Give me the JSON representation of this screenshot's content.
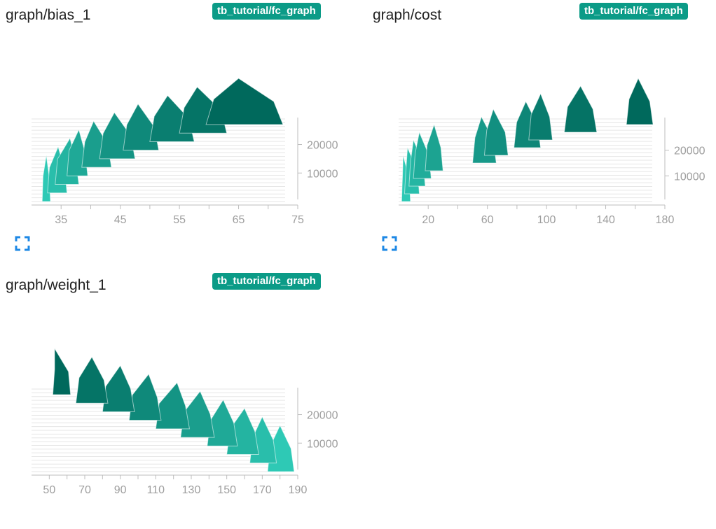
{
  "cards": [
    {
      "title": "graph/bias_1",
      "run_label": "tb_tutorial/fc_graph"
    },
    {
      "title": "graph/cost",
      "run_label": "tb_tutorial/fc_graph"
    },
    {
      "title": "graph/weight_1",
      "run_label": "tb_tutorial/fc_graph"
    }
  ],
  "colors": {
    "badge": "#0b9b87",
    "newest": "#00695c",
    "oldest": "#2ec9b5",
    "axis": "#bdbdbd",
    "tick_text": "#9e9e9e",
    "expand_icon": "#1e88e5"
  },
  "icons": {
    "expand": "fullscreen-corners-icon"
  },
  "chart_data": [
    {
      "type": "histogram",
      "title": "graph/bias_1",
      "x_ticks": [
        "35",
        "45",
        "55",
        "65",
        "75"
      ],
      "y_ticks": [
        "10000",
        "20000"
      ],
      "x_range": [
        30,
        75
      ],
      "step_range": [
        0,
        27000
      ],
      "series": [
        {
          "step": 0,
          "left": 31.8,
          "right": 33.2,
          "mode": 32.5
        },
        {
          "step": 3000,
          "left": 32.7,
          "right": 36.0,
          "mode": 34.5
        },
        {
          "step": 6000,
          "left": 34.0,
          "right": 38.0,
          "mode": 36.5
        },
        {
          "step": 9000,
          "left": 36.0,
          "right": 39.5,
          "mode": 38.0
        },
        {
          "step": 12000,
          "left": 38.5,
          "right": 43.5,
          "mode": 40.5
        },
        {
          "step": 15000,
          "left": 41.5,
          "right": 47.5,
          "mode": 44.0
        },
        {
          "step": 18000,
          "left": 45.5,
          "right": 51.5,
          "mode": 48.0
        },
        {
          "step": 21000,
          "left": 50.0,
          "right": 57.5,
          "mode": 53.0
        },
        {
          "step": 24000,
          "left": 55.0,
          "right": 63.0,
          "mode": 58.0
        },
        {
          "step": 27000,
          "left": 59.5,
          "right": 72.5,
          "mode": 65.0
        }
      ]
    },
    {
      "type": "histogram",
      "title": "graph/cost",
      "x_ticks": [
        "20",
        "60",
        "100",
        "140",
        "180"
      ],
      "y_ticks": [
        "10000",
        "20000"
      ],
      "x_range": [
        0,
        180
      ],
      "step_range": [
        0,
        27000
      ],
      "series": [
        {
          "step": 0,
          "left": 2.0,
          "right": 8.0,
          "mode": 3.0
        },
        {
          "step": 3000,
          "left": 4.0,
          "right": 14.0,
          "mode": 6.0
        },
        {
          "step": 6000,
          "left": 7.0,
          "right": 18.0,
          "mode": 10.0
        },
        {
          "step": 9000,
          "left": 10.0,
          "right": 22.0,
          "mode": 14.0
        },
        {
          "step": 12000,
          "left": 18.0,
          "right": 30.0,
          "mode": 24.0
        },
        {
          "step": 15000,
          "left": 50.0,
          "right": 66.0,
          "mode": 56.0
        },
        {
          "step": 18000,
          "left": 58.0,
          "right": 74.0,
          "mode": 64.0
        },
        {
          "step": 21000,
          "left": 78.0,
          "right": 96.0,
          "mode": 86.0
        },
        {
          "step": 24000,
          "left": 88.0,
          "right": 104.0,
          "mode": 96.0
        },
        {
          "step": 27000,
          "left": 112.0,
          "right": 134.0,
          "mode": 123.0
        },
        {
          "step": 30000,
          "left": 154.0,
          "right": 172.0,
          "mode": 162.0
        }
      ]
    },
    {
      "type": "histogram",
      "title": "graph/weight_1",
      "x_ticks": [
        "50",
        "70",
        "90",
        "110",
        "130",
        "150",
        "170",
        "190"
      ],
      "y_ticks": [
        "10000",
        "20000"
      ],
      "x_range": [
        40,
        190
      ],
      "step_range": [
        0,
        27000
      ],
      "series": [
        {
          "step": 0,
          "left": 173.0,
          "right": 188.0,
          "mode": 180.0
        },
        {
          "step": 3000,
          "left": 163.0,
          "right": 178.0,
          "mode": 170.0
        },
        {
          "step": 6000,
          "left": 150.0,
          "right": 168.0,
          "mode": 160.0
        },
        {
          "step": 9000,
          "left": 139.0,
          "right": 156.0,
          "mode": 148.0
        },
        {
          "step": 12000,
          "left": 124.0,
          "right": 143.0,
          "mode": 135.0
        },
        {
          "step": 15000,
          "left": 110.0,
          "right": 129.0,
          "mode": 122.0
        },
        {
          "step": 18000,
          "left": 95.0,
          "right": 113.0,
          "mode": 106.0
        },
        {
          "step": 21000,
          "left": 80.0,
          "right": 98.0,
          "mode": 90.0
        },
        {
          "step": 24000,
          "left": 65.0,
          "right": 83.0,
          "mode": 74.0
        },
        {
          "step": 27000,
          "left": 52.0,
          "right": 62.0,
          "mode": 53.0
        }
      ]
    }
  ]
}
